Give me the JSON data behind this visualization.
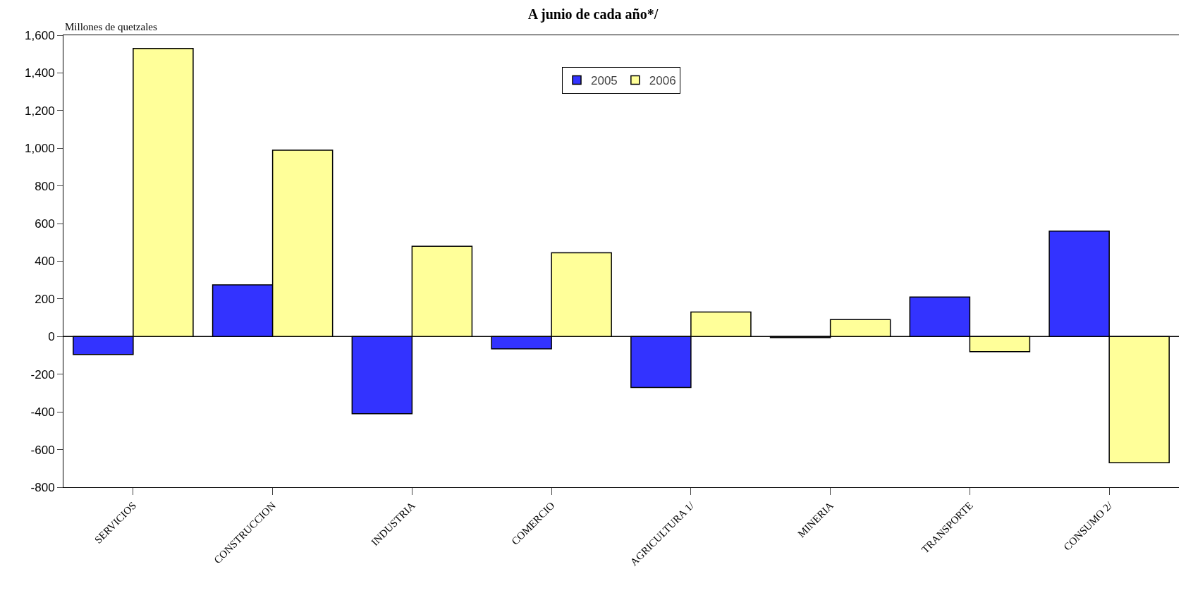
{
  "chart_data": {
    "type": "bar",
    "title": "A junio de cada año*/",
    "ylabel": "Millones de quetzales",
    "categories": [
      "SERVICIOS",
      "CONSTRUCCION",
      "INDUSTRIA",
      "COMERCIO",
      "AGRICULTURA 1/",
      "MINERIA",
      "TRANSPORTE",
      "CONSUMO 2/"
    ],
    "series": [
      {
        "name": "2005",
        "color": "#3333ff",
        "values": [
          -95,
          275,
          -410,
          -65,
          -270,
          -5,
          210,
          560
        ]
      },
      {
        "name": "2006",
        "color": "#ffff99",
        "values": [
          1530,
          990,
          480,
          445,
          130,
          90,
          -80,
          -670
        ]
      }
    ],
    "ylim": [
      -800,
      1600
    ],
    "yticks": [
      {
        "value": -800,
        "label": "-800"
      },
      {
        "value": -600,
        "label": "-600"
      },
      {
        "value": -400,
        "label": "-400"
      },
      {
        "value": -200,
        "label": "-200"
      },
      0,
      200,
      400,
      600,
      800,
      {
        "value": 1000,
        "label": "1,000"
      },
      {
        "value": 1200,
        "label": "1,200"
      },
      {
        "value": 1400,
        "label": "1,400"
      },
      {
        "value": 1600,
        "label": "1,600"
      }
    ],
    "ref_lines": [
      {
        "axis": "y",
        "value": 0,
        "color": "#000000"
      }
    ],
    "grid": false,
    "legend": "top"
  }
}
